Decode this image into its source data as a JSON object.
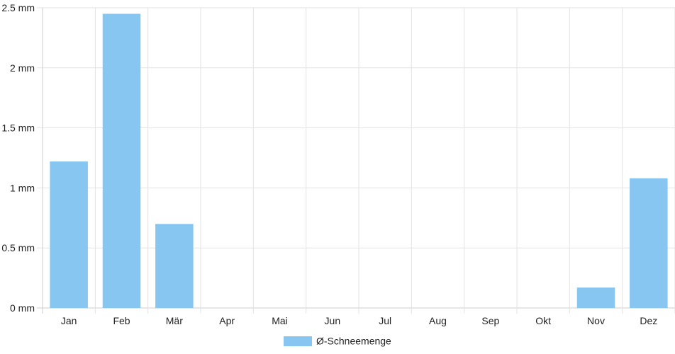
{
  "chart_data": {
    "type": "bar",
    "categories": [
      "Jan",
      "Feb",
      "Mär",
      "Apr",
      "Mai",
      "Jun",
      "Jul",
      "Aug",
      "Sep",
      "Okt",
      "Nov",
      "Dez"
    ],
    "series": [
      {
        "name": "Ø-Schneemenge",
        "values": [
          1.22,
          2.45,
          0.7,
          0,
          0,
          0,
          0,
          0,
          0,
          0,
          0.17,
          1.08
        ],
        "color": "#88c6f2"
      }
    ],
    "y_ticks": [
      "0 mm",
      "0.5 mm",
      "1 mm",
      "1.5 mm",
      "2 mm",
      "2.5 mm"
    ],
    "ylim": [
      0,
      2.5
    ],
    "y_unit": "mm",
    "grid": true,
    "legend_position": "bottom-center",
    "grid_color": "#e3e3e3",
    "axis_color": "#cccccc"
  }
}
